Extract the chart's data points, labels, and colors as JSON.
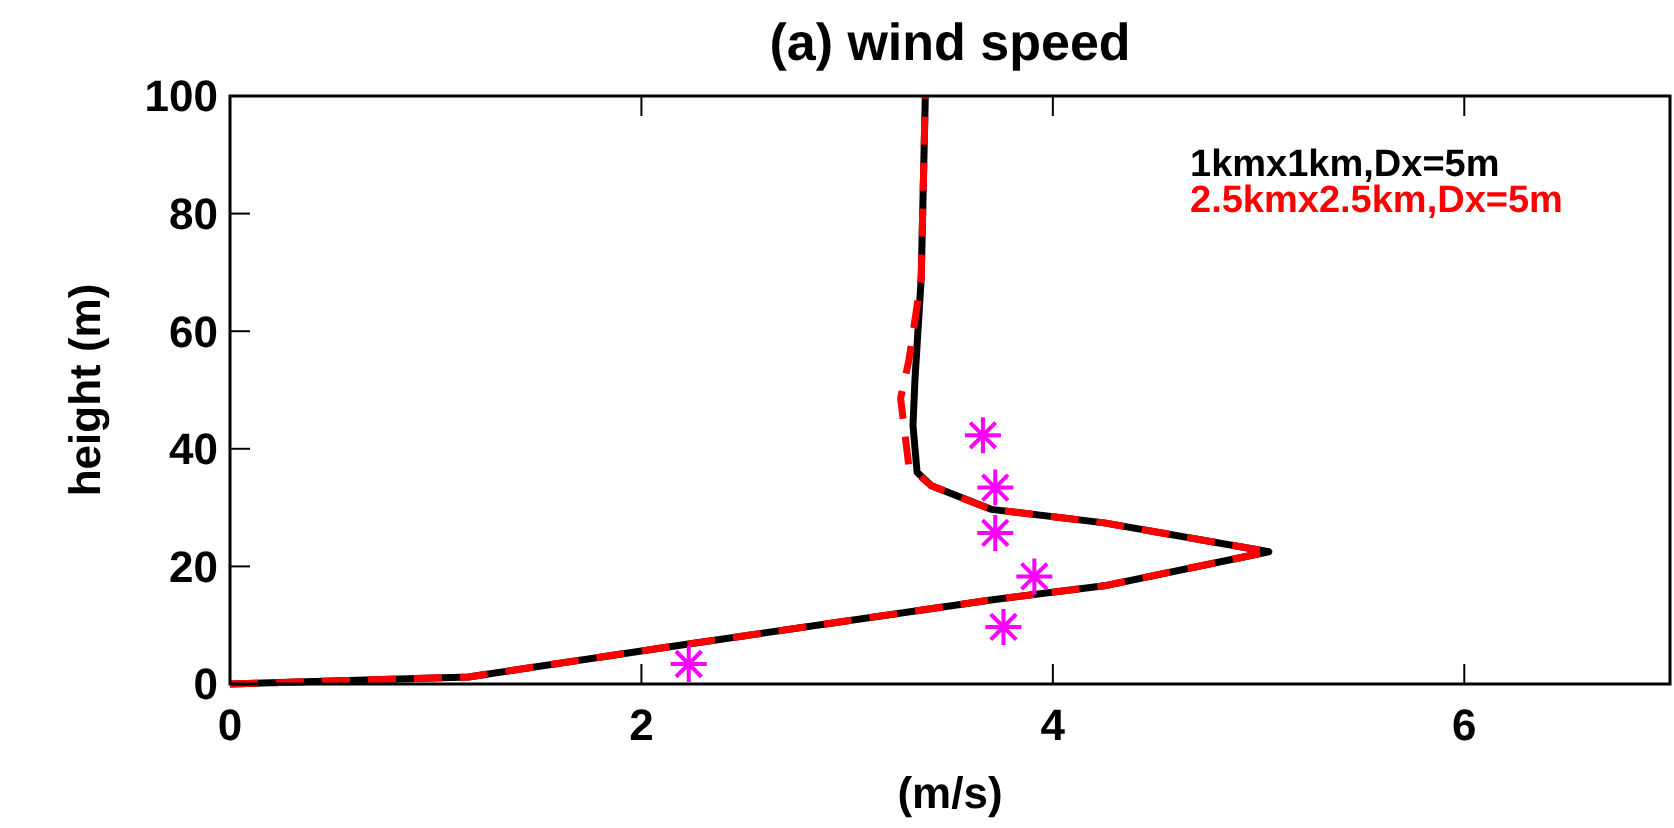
{
  "chart_data": {
    "type": "line",
    "title": "(a) wind speed",
    "xlabel": "(m/s)",
    "ylabel": "height (m)",
    "xlim": [
      0,
      7
    ],
    "xticks": [
      0,
      2,
      4,
      6
    ],
    "ylim": [
      0,
      100
    ],
    "yticks": [
      0,
      20,
      40,
      60,
      80,
      100
    ],
    "grid": false,
    "legend": "top right",
    "series": [
      {
        "name": "1kmx1km,Dx=5m",
        "color": "#000000",
        "line_style": "solid",
        "marker": "none",
        "x": [
          0,
          1.16,
          2.13,
          3.7,
          4.25,
          5.05,
          4.25,
          3.7,
          3.41,
          3.34,
          3.32,
          3.33,
          3.36,
          3.38
        ],
        "values": [
          0,
          1.2,
          6.3,
          14.3,
          16.7,
          22.5,
          27.4,
          29.7,
          33.7,
          36,
          44,
          52,
          69,
          100
        ]
      },
      {
        "name": "2.5kmx2.5km,Dx=5m",
        "color": "#ff0000",
        "line_style": "dashed",
        "marker": "none",
        "x": [
          0,
          1.16,
          2.13,
          3.7,
          4.25,
          5.05,
          4.25,
          3.7,
          3.41,
          3.3,
          3.26,
          3.3,
          3.36,
          3.38
        ],
        "values": [
          0,
          1.2,
          6.3,
          14.3,
          16.7,
          22.5,
          27.4,
          29.7,
          33.7,
          37,
          48.6,
          55,
          69,
          100
        ]
      },
      {
        "type": "scatter",
        "color": "#ff00ff",
        "marker": "cross",
        "x": [
          2.23,
          3.76,
          3.91,
          3.72,
          3.72,
          3.66
        ],
        "values": [
          3.4,
          9.7,
          18.3,
          25.7,
          33.4,
          42.3
        ]
      }
    ]
  }
}
